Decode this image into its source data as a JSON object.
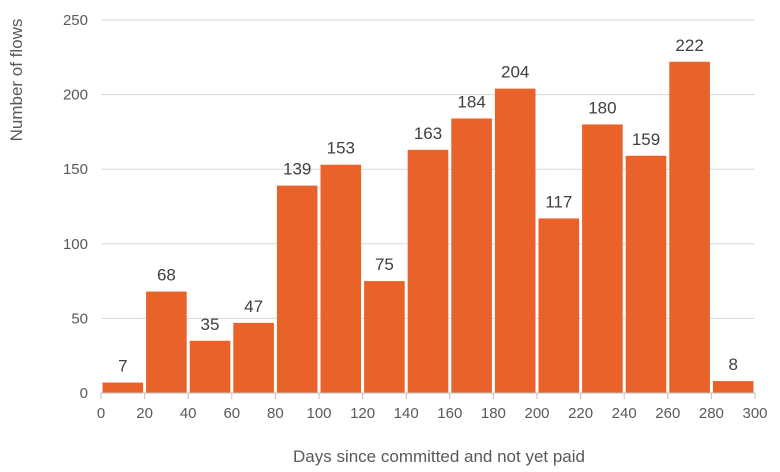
{
  "chart_data": {
    "type": "bar",
    "title": "",
    "xlabel": "Days since committed and not yet paid",
    "ylabel": "Number of flows",
    "bin_width": 20,
    "bins": [
      {
        "start": 0,
        "end": 20,
        "value": 7
      },
      {
        "start": 20,
        "end": 40,
        "value": 68
      },
      {
        "start": 40,
        "end": 60,
        "value": 35
      },
      {
        "start": 60,
        "end": 80,
        "value": 47
      },
      {
        "start": 80,
        "end": 100,
        "value": 139
      },
      {
        "start": 100,
        "end": 120,
        "value": 153
      },
      {
        "start": 120,
        "end": 140,
        "value": 75
      },
      {
        "start": 140,
        "end": 160,
        "value": 163
      },
      {
        "start": 160,
        "end": 180,
        "value": 184
      },
      {
        "start": 180,
        "end": 200,
        "value": 204
      },
      {
        "start": 200,
        "end": 220,
        "value": 117
      },
      {
        "start": 220,
        "end": 240,
        "value": 180
      },
      {
        "start": 240,
        "end": 260,
        "value": 159
      },
      {
        "start": 260,
        "end": 280,
        "value": 222
      },
      {
        "start": 280,
        "end": 300,
        "value": 8
      }
    ],
    "xlim": [
      0,
      300
    ],
    "ylim": [
      0,
      250
    ],
    "xticks": [
      0,
      20,
      40,
      60,
      80,
      100,
      120,
      140,
      160,
      180,
      200,
      220,
      240,
      260,
      280,
      300
    ],
    "yticks": [
      0,
      50,
      100,
      150,
      200,
      250
    ],
    "grid": "horizontal",
    "legend": "none",
    "colors": {
      "bar": "#E8622A",
      "grid": "#D9D9D9",
      "axis": "#BFBFBF",
      "text": "#595959",
      "label": "#404040"
    }
  }
}
